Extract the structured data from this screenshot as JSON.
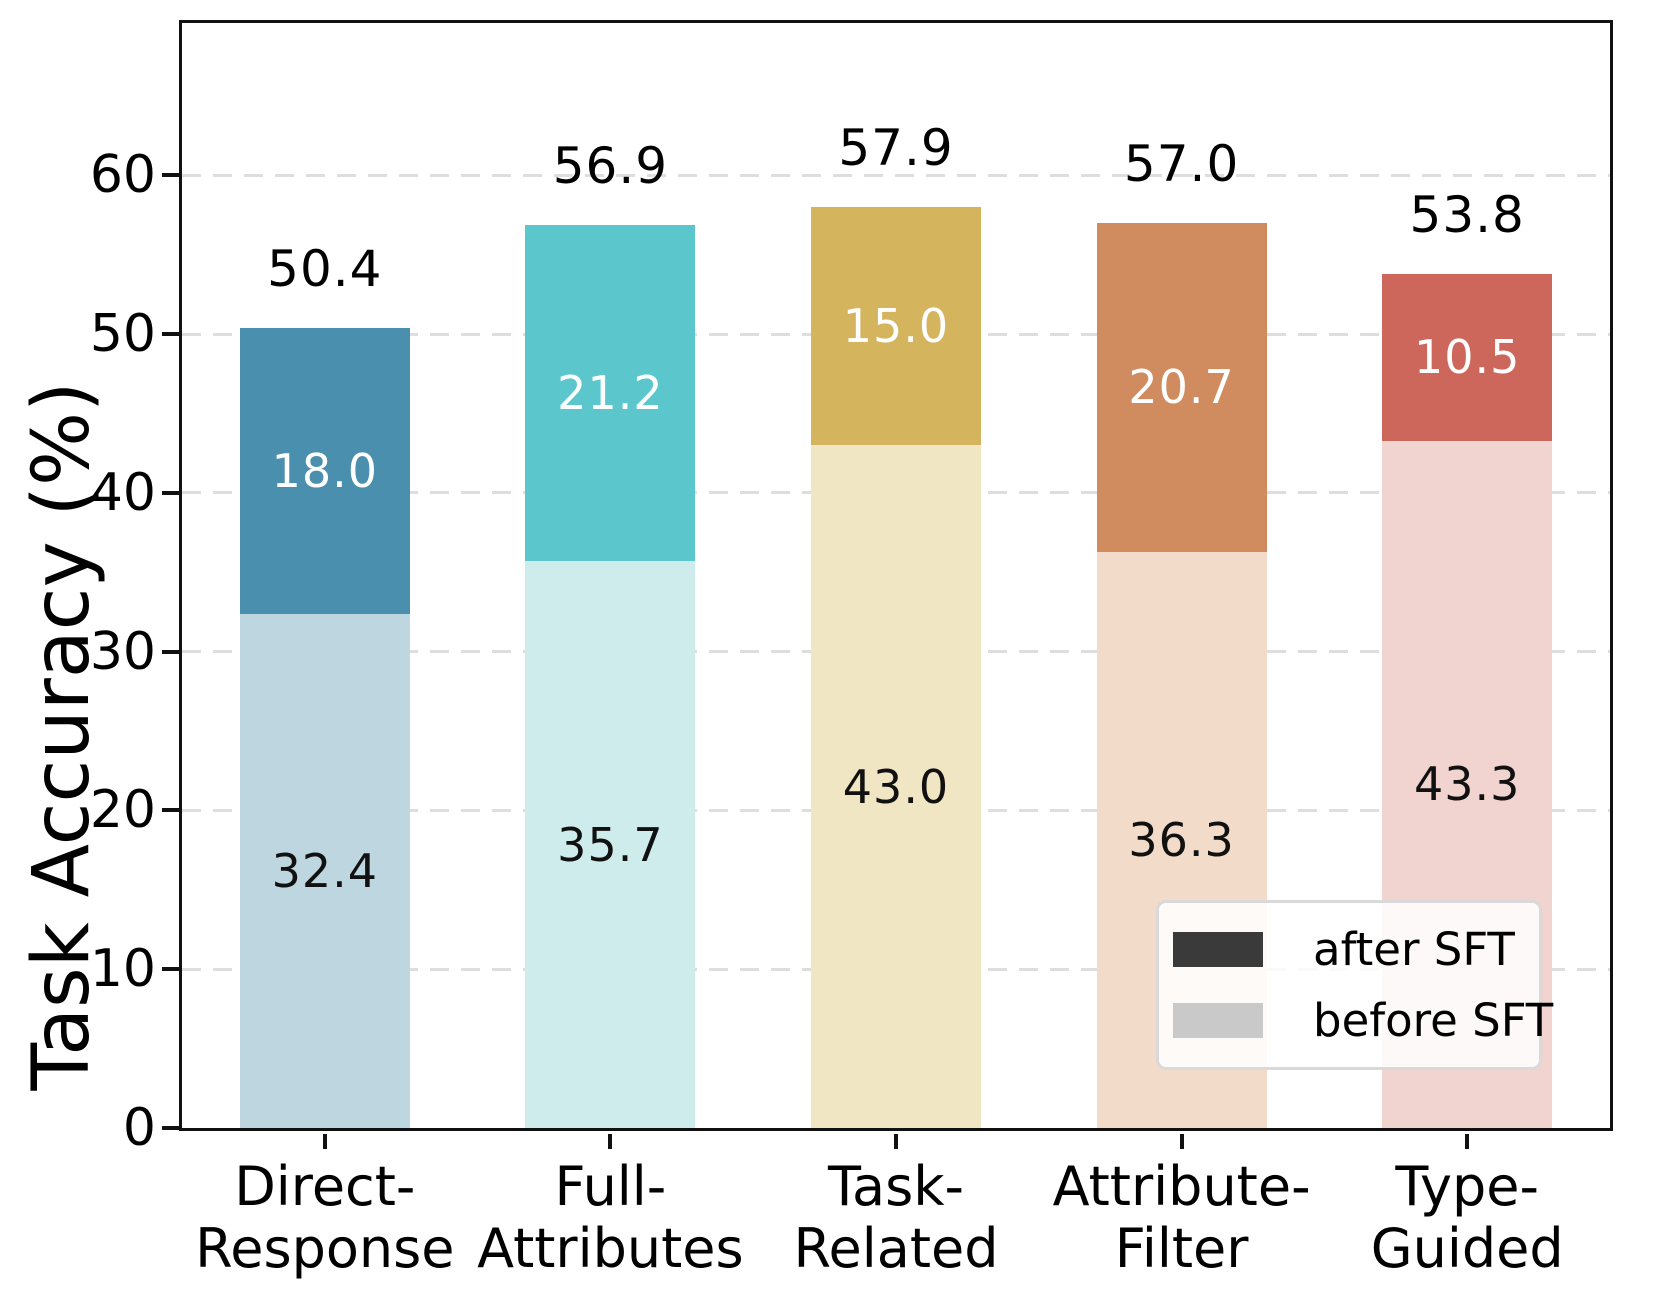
{
  "chart_data": {
    "type": "bar",
    "stacked": true,
    "title": "",
    "xlabel": "",
    "ylabel": "Task Accuracy (%)",
    "ylim": [
      0,
      69.6
    ],
    "yticks": [
      0,
      10,
      20,
      30,
      40,
      50,
      60
    ],
    "grid": "horizontal dashed",
    "categories": [
      "Direct-Response",
      "Full-Attributes",
      "Task-Related",
      "Attribute-Filter",
      "Type-Guided"
    ],
    "category_label_lines": [
      [
        "Direct-",
        "Response"
      ],
      [
        "Full-",
        "Attributes"
      ],
      [
        "Task-",
        "Related"
      ],
      [
        "Attribute-",
        "Filter"
      ],
      [
        "Type-",
        "Guided"
      ]
    ],
    "series": [
      {
        "name": "before SFT",
        "values": [
          32.4,
          35.7,
          43.0,
          36.3,
          43.3
        ]
      },
      {
        "name": "after SFT",
        "values": [
          18.0,
          21.2,
          15.0,
          20.7,
          10.5
        ]
      }
    ],
    "totals": [
      50.4,
      56.9,
      57.9,
      57.0,
      53.8
    ],
    "bar_colors_after": [
      "#4a8fad",
      "#5bc7cd",
      "#d4b45c",
      "#d08c5f",
      "#cd675c"
    ],
    "bar_colors_before": [
      "#bed6e0",
      "#cfecec",
      "#f0e6c3",
      "#f2dcc9",
      "#f1d4cf"
    ],
    "legend": {
      "position": "lower right",
      "entries": [
        {
          "label": "after SFT",
          "color": "#3a3a3a"
        },
        {
          "label": "before SFT",
          "color": "#c9c9c9"
        }
      ]
    }
  }
}
